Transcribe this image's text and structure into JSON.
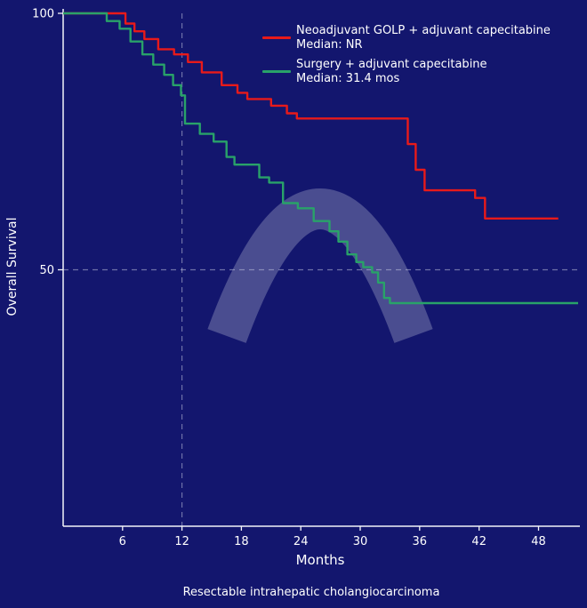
{
  "page": {
    "background_color": "#13166e",
    "caption": "Resectable intrahepatic cholangiocarcinoma"
  },
  "chart_data": {
    "type": "line",
    "subtype": "kaplan-meier-step",
    "title": "",
    "xlabel": "Months",
    "ylabel": "Overall Survival",
    "xlim": [
      0,
      52
    ],
    "ylim": [
      0,
      100
    ],
    "x_ticks": [
      6,
      12,
      18,
      24,
      30,
      36,
      42,
      48
    ],
    "y_ticks": [
      100,
      50
    ],
    "grid": false,
    "legend_position": "top-center",
    "axis_color": "#f2f3f8",
    "text_color": "#ffffff",
    "dash_color": "#b9bdd8",
    "watermark_color": "#c9cce0",
    "reference_lines": [
      {
        "axis": "x",
        "value": 12,
        "style": "dashed"
      },
      {
        "axis": "y",
        "value": 50,
        "style": "dashed"
      }
    ],
    "series": [
      {
        "name": "Neoadjuvant GOLP + adjuvant capecitabine",
        "median_label": "Median: NR",
        "color": "#e81a1a",
        "points": [
          [
            0,
            100
          ],
          [
            6.3,
            98
          ],
          [
            7.2,
            96.5
          ],
          [
            8.2,
            95
          ],
          [
            9.6,
            93
          ],
          [
            11.2,
            92
          ],
          [
            12.6,
            90.5
          ],
          [
            14,
            88.5
          ],
          [
            16,
            86
          ],
          [
            17.6,
            84.5
          ],
          [
            18.6,
            83.3
          ],
          [
            21,
            82
          ],
          [
            22.6,
            80.5
          ],
          [
            23.6,
            79.5
          ],
          [
            34.8,
            74.5
          ],
          [
            35.6,
            69.5
          ],
          [
            36.5,
            65.5
          ],
          [
            41.6,
            64
          ],
          [
            42.6,
            60
          ],
          [
            50,
            60
          ]
        ]
      },
      {
        "name": "Surgery + adjuvant capecitabine",
        "median_label": "Median: 31.4 mos",
        "color": "#29a269",
        "points": [
          [
            0,
            100
          ],
          [
            4.4,
            98.5
          ],
          [
            5.7,
            97
          ],
          [
            6.8,
            94.5
          ],
          [
            8,
            92
          ],
          [
            9.1,
            90
          ],
          [
            10.2,
            88
          ],
          [
            11.1,
            86
          ],
          [
            11.9,
            84
          ],
          [
            12.3,
            78.5
          ],
          [
            13.8,
            76.5
          ],
          [
            15.2,
            75
          ],
          [
            16.5,
            72
          ],
          [
            17.3,
            70.5
          ],
          [
            19.8,
            68
          ],
          [
            20.8,
            67
          ],
          [
            22.2,
            63
          ],
          [
            23.7,
            62
          ],
          [
            25.3,
            59.5
          ],
          [
            26.9,
            57.5
          ],
          [
            27.8,
            55.5
          ],
          [
            28.7,
            53
          ],
          [
            29.6,
            51.5
          ],
          [
            30.3,
            50.5
          ],
          [
            31.2,
            49.5
          ],
          [
            31.8,
            47.5
          ],
          [
            32.4,
            44.5
          ],
          [
            33,
            43.5
          ],
          [
            52,
            43.5
          ]
        ]
      }
    ]
  }
}
